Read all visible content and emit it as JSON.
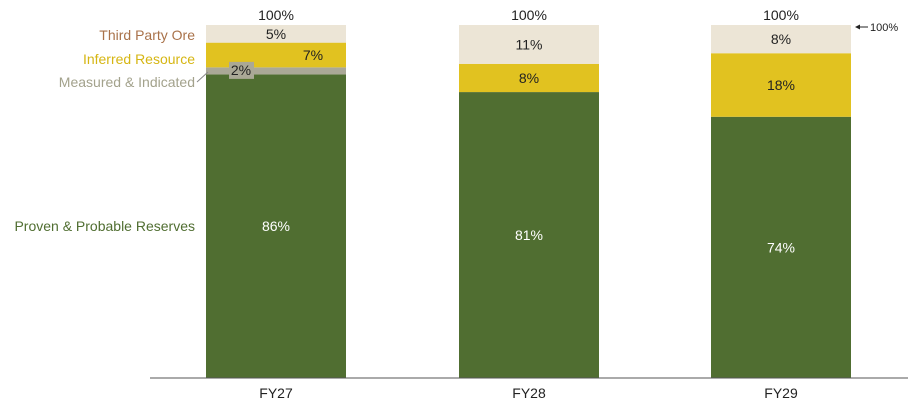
{
  "chart_data": {
    "type": "bar",
    "stacked": true,
    "title": "",
    "xlabel": "",
    "ylabel": "",
    "ylim": [
      0,
      100
    ],
    "grid": false,
    "legend": "left",
    "categories": [
      "FY27",
      "FY28",
      "FY29"
    ],
    "series": [
      {
        "name": "Proven & Probable Reserves",
        "color": "#506e31",
        "label_color": "#ffffff",
        "values": [
          86,
          81,
          74
        ],
        "labels": [
          "86%",
          "81%",
          "74%"
        ]
      },
      {
        "name": "Measured & Indicated",
        "color": "#aaa896",
        "label_color": "#222222",
        "values": [
          2,
          0,
          0
        ],
        "labels": [
          "2%",
          "",
          ""
        ]
      },
      {
        "name": "Inferred Resource",
        "color": "#e1c220",
        "label_color": "#222222",
        "values": [
          7,
          8,
          18
        ],
        "labels": [
          "7%",
          "8%",
          "18%"
        ]
      },
      {
        "name": "Third Party Ore",
        "color": "#ece5d6",
        "label_color": "#222222",
        "values": [
          5,
          11,
          8
        ],
        "labels": [
          "5%",
          "11%",
          "8%"
        ]
      }
    ],
    "totals": [
      "100%",
      "100%",
      "100%"
    ],
    "annotation": "100%",
    "legend_colors": {
      "Third Party Ore": "#a9724a",
      "Inferred Resource": "#d6b613",
      "Measured & Indicated": "#a3a28c",
      "Proven & Probable Reserves": "#506e31"
    }
  }
}
